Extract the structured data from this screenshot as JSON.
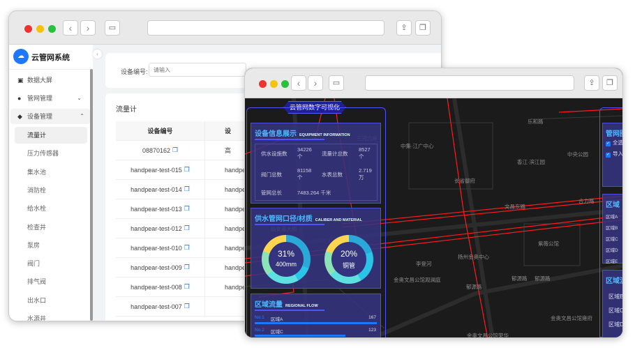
{
  "back_window": {
    "brand": "云管网系统",
    "menu": [
      {
        "label": "数据大屏",
        "icon": "dashboard-icon"
      },
      {
        "label": "管网管理",
        "icon": "pipe-network-icon",
        "expanded": false
      },
      {
        "label": "设备管理",
        "icon": "device-icon",
        "expanded": true
      }
    ],
    "submenu": [
      "流量计",
      "压力传感器",
      "集水池",
      "消防栓",
      "给水栓",
      "检查井",
      "泵房",
      "阀门",
      "排气阀",
      "出水口",
      "水源井"
    ],
    "active_submenu": "流量计",
    "filter": {
      "label": "设备编号:",
      "placeholder": "请输入"
    },
    "table_title": "流量计",
    "table": {
      "headers": [
        "设备编号",
        "设"
      ],
      "rows": [
        [
          "08870162",
          "高"
        ],
        [
          "handpear-test-015",
          "handpe"
        ],
        [
          "handpear-test-014",
          "handpe"
        ],
        [
          "handpear-test-013",
          "handpe"
        ],
        [
          "handpear-test-012",
          "handpe"
        ],
        [
          "handpear-test-010",
          "handpe"
        ],
        [
          "handpear-test-009",
          "handpe"
        ],
        [
          "handpear-test-008",
          "handpe"
        ],
        [
          "handpear-test-007",
          ""
        ]
      ]
    }
  },
  "front_window": {
    "title": "云管网数字可视化",
    "equipment": {
      "title": "设备信息展示",
      "subtitle": "EQUIPMENT INFORMATION",
      "items": [
        {
          "label": "供水设施数",
          "value": "34226 个"
        },
        {
          "label": "流量计总数",
          "value": "8527 个"
        },
        {
          "label": "阀门总数",
          "value": "81158 个"
        },
        {
          "label": "水表总数",
          "value": "2.719 万"
        },
        {
          "label": "管网总长",
          "value": "7483.264 千米"
        }
      ]
    },
    "caliber": {
      "title": "供水管网口径/材质",
      "subtitle": "CALIBER AND MATERIAL",
      "donuts": [
        {
          "percent": "31%",
          "label": "400mm",
          "value": 31
        },
        {
          "percent": "20%",
          "label": "铜管",
          "value": 20
        }
      ]
    },
    "regional_flow": {
      "title": "区域流量",
      "subtitle": "REGIONAL FLOW",
      "rows": [
        {
          "rank": "No.1",
          "name": "区域A",
          "value": "167",
          "fraction": 1.0
        },
        {
          "rank": "No.2",
          "name": "区域C",
          "value": "123",
          "fraction": 0.74
        }
      ]
    },
    "right_panels": {
      "pipe_map": {
        "title": "管网图",
        "checks": [
          "全选",
          "导入"
        ]
      },
      "region_pressure": {
        "title": "区域",
        "items": [
          "区域A",
          "区域B",
          "区域C",
          "区域D",
          "区域E"
        ],
        "extra": "0"
      },
      "region_flow2": {
        "title": "区域流",
        "items": [
          "区域B",
          "区域C",
          "区域D"
        ]
      }
    },
    "map_labels": [
      "中集·江广中心",
      "乐和路",
      "中央公园",
      "香江·滨江园",
      "长省御府",
      "文昌东路",
      "合力路",
      "紫薇公馆",
      "扬州金奥中心",
      "李登河",
      "金奥文昌公馆观澜庭",
      "郁源路",
      "郁源路",
      "郁源路",
      "金奥文昌公馆雍府",
      "金奥文昌公馆荣华",
      "仙女庙大桥",
      "三河六岸"
    ]
  },
  "colors": {
    "accent": "#1e78ff",
    "pipe": "#ff1a1a",
    "panel_border": "#4a50d8",
    "map_bg": "#1b1b1b"
  }
}
